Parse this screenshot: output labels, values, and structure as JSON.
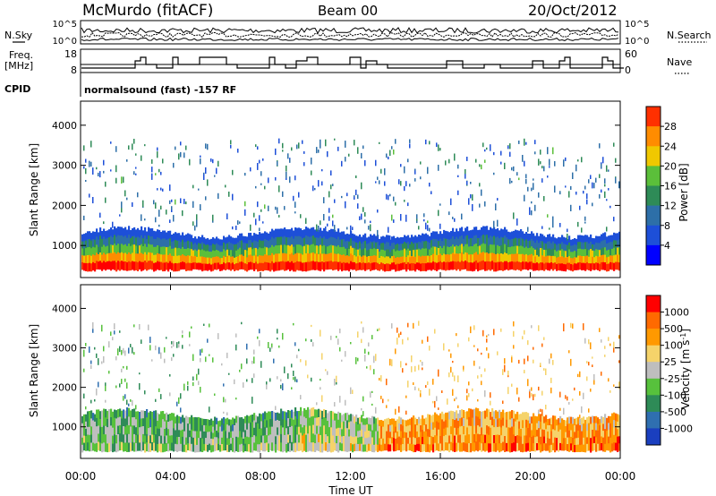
{
  "header": {
    "title": "McMurdo (fitACF)",
    "beam": "Beam 00",
    "date": "20/Oct/2012"
  },
  "status_panels": {
    "nsky_label": "N.Sky",
    "nsearch_label": "N.Search",
    "freq_label_1": "Freq.",
    "freq_label_2": "[MHz]",
    "nave_label": "Nave",
    "cpid_label": "CPID",
    "cpid_value": "normalsound (fast) -157 RF",
    "noise_left_ticks": [
      "10^5",
      "10^0"
    ],
    "noise_right_ticks": [
      "10^5",
      "10^0"
    ],
    "freq_ticks": [
      "18",
      "8"
    ],
    "nave_ticks": [
      "60",
      "0"
    ]
  },
  "chart_data": [
    {
      "type": "heatmap",
      "name": "power",
      "xlabel": "",
      "ylabel": "Slant Range [km]",
      "xlim": [
        0,
        24
      ],
      "ylim": [
        200,
        4600
      ],
      "y_ticks": [
        1000,
        2000,
        3000,
        4000
      ],
      "colorbar_label": "Power [dB]",
      "colorbar_ticks": [
        "28",
        "24",
        "20",
        "16",
        "12",
        "8",
        "4"
      ],
      "colorbar_colors": [
        "#0000ff",
        "#1d4fd8",
        "#2d6fa8",
        "#2e8b57",
        "#5bbf3a",
        "#f0c800",
        "#ff8c00",
        "#ff3000",
        "#ff0000"
      ],
      "main_band_km": [
        400,
        1400
      ],
      "peak_band_km": [
        450,
        800
      ]
    },
    {
      "type": "heatmap",
      "name": "velocity",
      "xlabel": "Time UT",
      "ylabel": "Slant Range [km]",
      "xlim": [
        0,
        24
      ],
      "ylim": [
        200,
        4600
      ],
      "x_ticks": [
        "00:00",
        "04:00",
        "08:00",
        "12:00",
        "16:00",
        "20:00",
        "00:00"
      ],
      "y_ticks": [
        1000,
        2000,
        3000,
        4000
      ],
      "colorbar_label": "Velocity [m s^-1]",
      "colorbar_ticks": [
        "1000",
        "500",
        "100",
        "25",
        "-25",
        "-100",
        "-500",
        "-1000"
      ],
      "colorbar_colors": [
        "#1a3fbf",
        "#2f6fb0",
        "#2e8b57",
        "#57c13c",
        "#bebebe",
        "#f5d36a",
        "#ff9900",
        "#ff6a00",
        "#ff0000"
      ],
      "main_band_km": [
        400,
        1400
      ]
    }
  ]
}
